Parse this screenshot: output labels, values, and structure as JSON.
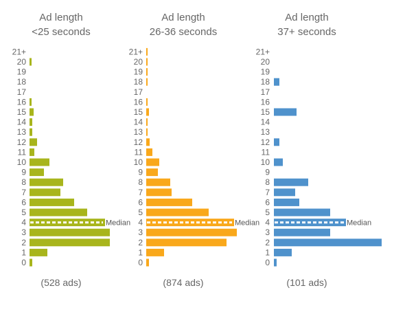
{
  "chart_data": [
    {
      "type": "bar",
      "orientation": "horizontal",
      "title": "Ad length",
      "subtitle": "<25 seconds",
      "categories": [
        "0",
        "1",
        "2",
        "3",
        "4",
        "5",
        "6",
        "7",
        "8",
        "9",
        "10",
        "11",
        "12",
        "13",
        "14",
        "15",
        "16",
        "17",
        "18",
        "19",
        "20",
        "21+"
      ],
      "values": [
        4,
        26,
        117,
        117,
        110,
        84,
        65,
        45,
        49,
        21,
        29,
        7,
        11,
        4,
        4,
        6,
        3,
        0,
        0,
        0,
        3,
        0
      ],
      "median_category": "4",
      "median_label": "Median",
      "count_label": "(528 ads)",
      "color": "#A8B51C"
    },
    {
      "type": "bar",
      "orientation": "horizontal",
      "title": "Ad length",
      "subtitle": "26-36 seconds",
      "categories": [
        "0",
        "1",
        "2",
        "3",
        "4",
        "5",
        "6",
        "7",
        "8",
        "9",
        "10",
        "11",
        "12",
        "13",
        "14",
        "15",
        "16",
        "17",
        "18",
        "19",
        "20",
        "21+"
      ],
      "values": [
        4,
        26,
        117,
        132,
        128,
        91,
        67,
        37,
        35,
        17,
        19,
        9,
        5,
        2,
        2,
        4,
        2,
        0,
        2,
        2,
        2,
        2
      ],
      "median_category": "4",
      "median_label": "Median",
      "count_label": "(874 ads)",
      "color": "#F9A81B"
    },
    {
      "type": "bar",
      "orientation": "horizontal",
      "title": "Ad length",
      "subtitle": "37+ seconds",
      "categories": [
        "0",
        "1",
        "2",
        "3",
        "4",
        "5",
        "6",
        "7",
        "8",
        "9",
        "10",
        "11",
        "12",
        "13",
        "14",
        "15",
        "16",
        "17",
        "18",
        "19",
        "20",
        "21+"
      ],
      "values": [
        4,
        26,
        157,
        82,
        105,
        82,
        37,
        31,
        50,
        0,
        13,
        0,
        8,
        0,
        0,
        33,
        0,
        0,
        8,
        0,
        0,
        0
      ],
      "median_category": "4",
      "median_label": "Median",
      "count_label": "(101 ads)",
      "color": "#4F92CC"
    }
  ]
}
